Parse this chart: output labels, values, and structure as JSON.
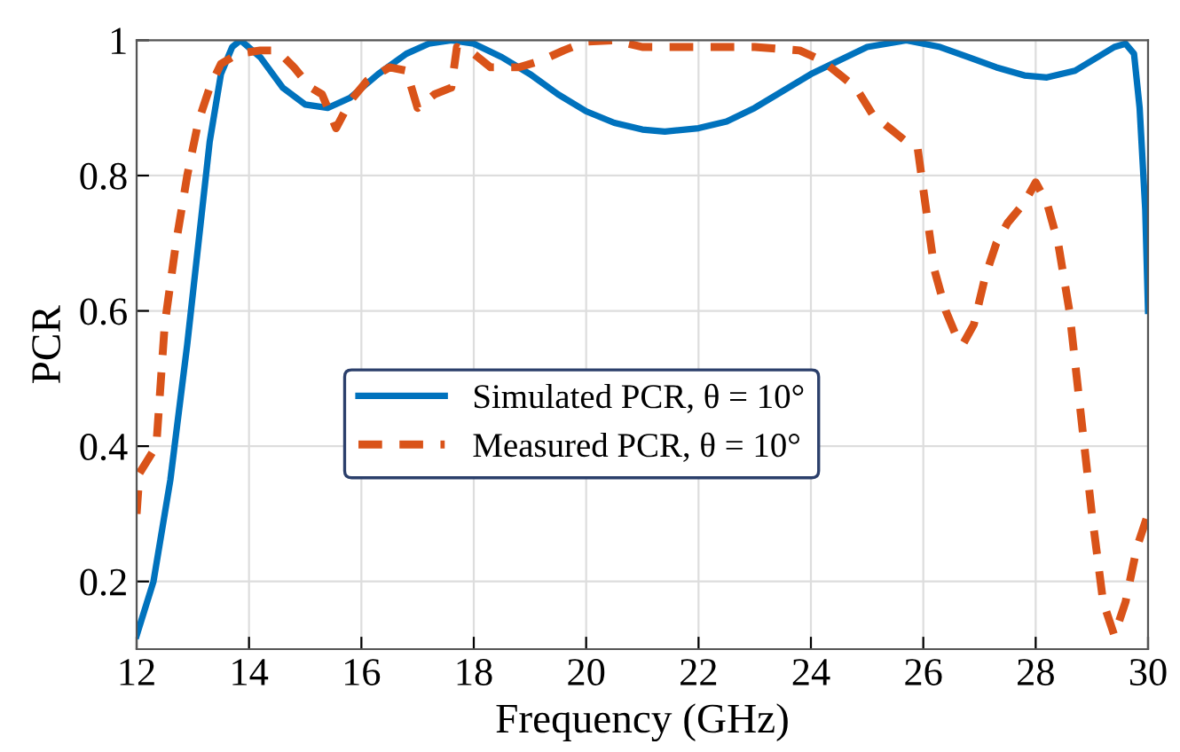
{
  "chart_data": {
    "type": "line",
    "xlabel": "Frequency (GHz)",
    "ylabel": "PCR",
    "xlim": [
      12,
      30
    ],
    "ylim": [
      0.1,
      1
    ],
    "xticks": [
      12,
      14,
      16,
      18,
      20,
      22,
      24,
      26,
      28,
      30
    ],
    "yticks": [
      0.2,
      0.4,
      0.6,
      0.8,
      1
    ],
    "grid": true,
    "legend": "center",
    "series": [
      {
        "name": "Simulated PCR, θ = 10°",
        "color": "#0072bd",
        "line_style": "solid",
        "x": [
          12,
          12.3,
          12.6,
          12.9,
          13.1,
          13.3,
          13.5,
          13.7,
          13.85,
          14.2,
          14.6,
          15.0,
          15.4,
          15.8,
          16.3,
          16.8,
          17.2,
          17.6,
          18.0,
          18.5,
          19.0,
          19.5,
          20.0,
          20.5,
          21.0,
          21.4,
          22.0,
          22.5,
          23.0,
          23.5,
          24.0,
          24.5,
          25.0,
          25.7,
          26.3,
          26.8,
          27.3,
          27.8,
          28.2,
          28.7,
          29.1,
          29.4,
          29.6,
          29.75,
          29.85,
          29.95,
          30
        ],
        "values": [
          0.12,
          0.2,
          0.35,
          0.55,
          0.7,
          0.85,
          0.95,
          0.99,
          1.0,
          0.975,
          0.93,
          0.905,
          0.9,
          0.915,
          0.95,
          0.98,
          0.995,
          1.0,
          0.995,
          0.975,
          0.95,
          0.92,
          0.895,
          0.878,
          0.868,
          0.865,
          0.87,
          0.88,
          0.9,
          0.925,
          0.95,
          0.97,
          0.99,
          1.0,
          0.99,
          0.975,
          0.96,
          0.948,
          0.945,
          0.955,
          0.975,
          0.99,
          0.995,
          0.98,
          0.9,
          0.75,
          0.6
        ]
      },
      {
        "name": "Measured PCR, θ = 10°",
        "color": "#d95319",
        "line_style": "dashed",
        "x": [
          12,
          12.05,
          12.2,
          12.35,
          12.5,
          12.7,
          12.9,
          13.1,
          13.3,
          13.5,
          13.8,
          14.2,
          14.5,
          14.8,
          15.1,
          15.3,
          15.55,
          15.8,
          16.1,
          16.5,
          16.8,
          17.0,
          17.3,
          17.6,
          17.7,
          18.0,
          18.3,
          18.8,
          19.2,
          19.6,
          20.0,
          20.5,
          21.0,
          22.0,
          23.0,
          23.8,
          24.2,
          24.5,
          24.8,
          25.1,
          25.4,
          25.7,
          25.9,
          26.0,
          26.2,
          26.4,
          26.6,
          26.7,
          26.9,
          27.1,
          27.3,
          27.5,
          27.8,
          28.0,
          28.2,
          28.4,
          28.6,
          28.8,
          29.0,
          29.2,
          29.4,
          29.6,
          29.8,
          30
        ],
        "values": [
          0.3,
          0.36,
          0.38,
          0.4,
          0.58,
          0.7,
          0.8,
          0.88,
          0.93,
          0.965,
          0.98,
          0.985,
          0.985,
          0.96,
          0.93,
          0.92,
          0.87,
          0.91,
          0.94,
          0.96,
          0.955,
          0.9,
          0.92,
          0.93,
          0.99,
          0.98,
          0.96,
          0.96,
          0.97,
          0.985,
          0.998,
          1.0,
          0.99,
          0.99,
          0.99,
          0.985,
          0.97,
          0.95,
          0.93,
          0.89,
          0.87,
          0.85,
          0.84,
          0.78,
          0.66,
          0.6,
          0.56,
          0.55,
          0.58,
          0.65,
          0.7,
          0.73,
          0.76,
          0.79,
          0.76,
          0.7,
          0.6,
          0.45,
          0.3,
          0.17,
          0.12,
          0.17,
          0.25,
          0.3
        ]
      }
    ]
  }
}
